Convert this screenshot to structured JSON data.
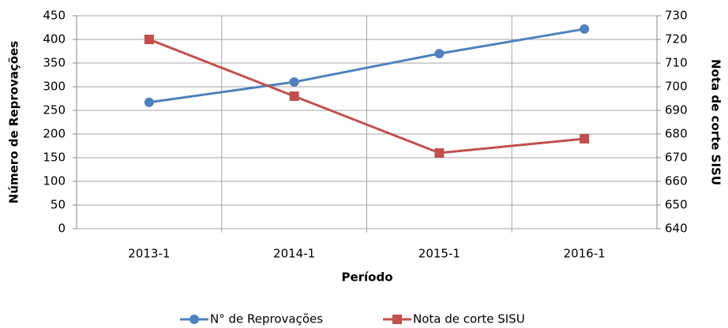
{
  "chart_data": {
    "type": "line",
    "x_label": "Período",
    "y_label": "Número de Reprovações",
    "y2_label": "Nota de  corte SISU",
    "categories": [
      "2013-1",
      "2014-1",
      "2015-1",
      "2016-1"
    ],
    "series": [
      {
        "name": "N° de Reprovações",
        "color": "#4f81bd",
        "marker": "circle",
        "values": [
          267,
          310,
          370,
          422
        ]
      },
      {
        "name": "Nota de corte SISU",
        "color": "#c0504d",
        "marker": "square",
        "axis": "y2",
        "values": [
          720,
          696,
          672,
          678
        ]
      }
    ],
    "ylim": [
      0,
      450
    ],
    "yticks": [
      0,
      50,
      100,
      150,
      200,
      250,
      300,
      350,
      400,
      450
    ],
    "y2lim": [
      640,
      730
    ],
    "y2ticks": [
      640,
      650,
      660,
      670,
      680,
      690,
      700,
      710,
      720,
      730
    ],
    "grid": true,
    "legend": "bottom"
  }
}
